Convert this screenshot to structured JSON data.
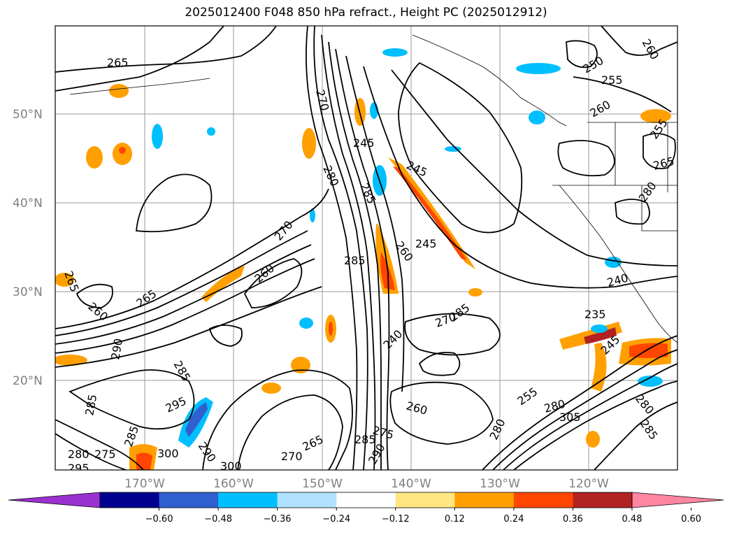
{
  "title": "2025012400 F048 850 hPa refract., Height PC (2025012912)",
  "map": {
    "lat_labels": [
      "50°N",
      "40°N",
      "30°N",
      "20°N"
    ],
    "lon_labels": [
      "170°W",
      "160°W",
      "150°W",
      "140°W",
      "130°W",
      "120°W"
    ],
    "contour_labels": [
      "265",
      "270",
      "260",
      "250",
      "255",
      "260",
      "255",
      "265",
      "280",
      "245",
      "245",
      "280",
      "285",
      "245",
      "260",
      "265",
      "260",
      "270",
      "265",
      "285",
      "270",
      "285",
      "240",
      "240",
      "235",
      "245",
      "260",
      "290",
      "285",
      "295",
      "285",
      "280",
      "275",
      "285",
      "300",
      "300",
      "295",
      "290",
      "265",
      "270",
      "275",
      "285",
      "290",
      "260",
      "280",
      "255",
      "280",
      "305",
      "280",
      "285"
    ]
  },
  "colorbar": {
    "labels": [
      "−0.60",
      "−0.48",
      "−0.36",
      "−0.24",
      "−0.12",
      "0.12",
      "0.24",
      "0.36",
      "0.48",
      "0.60"
    ],
    "colors": [
      "#9b30d0",
      "#000090",
      "#3060d0",
      "#00bfff",
      "#b0e2ff",
      "#ffffff",
      "#ffe680",
      "#ffa000",
      "#ff4500",
      "#b22222",
      "#ff85a0"
    ]
  }
}
